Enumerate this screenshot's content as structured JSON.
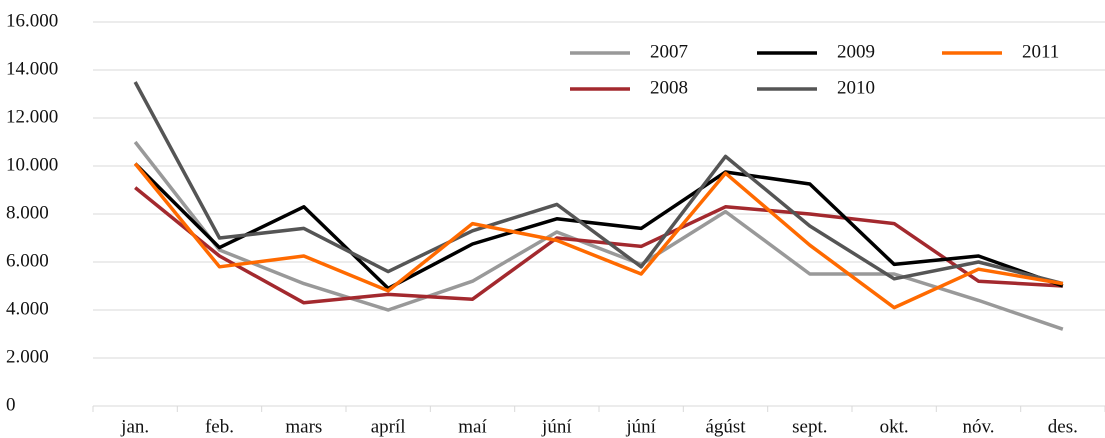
{
  "chart_data": {
    "type": "line",
    "categories": [
      "jan.",
      "feb.",
      "mars",
      "apríl",
      "maí",
      "júní",
      "júní",
      "ágúst",
      "sept.",
      "okt.",
      "nóv.",
      "des."
    ],
    "series": [
      {
        "name": "2007",
        "color": "#999999",
        "values": [
          11000,
          6500,
          5100,
          4000,
          5200,
          7250,
          5900,
          8100,
          5500,
          5500,
          4400,
          3200
        ]
      },
      {
        "name": "2008",
        "color": "#a3292e",
        "values": [
          9100,
          6250,
          4300,
          4650,
          4450,
          7000,
          6650,
          8300,
          8000,
          7600,
          5200,
          5000
        ]
      },
      {
        "name": "2009",
        "color": "#000000",
        "values": [
          10100,
          6600,
          8300,
          4900,
          6750,
          7800,
          7400,
          9750,
          9250,
          5900,
          6250,
          5000
        ]
      },
      {
        "name": "2010",
        "color": "#555555",
        "values": [
          13500,
          7000,
          7400,
          5600,
          7300,
          8400,
          5800,
          10400,
          7500,
          5300,
          6000,
          5100
        ]
      },
      {
        "name": "2011",
        "color": "#ff6a00",
        "values": [
          10100,
          5800,
          6250,
          4800,
          7600,
          6900,
          5500,
          9700,
          6700,
          4100,
          5700,
          5100
        ]
      }
    ],
    "ylim": [
      0,
      16000
    ],
    "yticks": [
      0,
      {
        "value": 2000,
        "label": "2.000"
      },
      {
        "value": 4000,
        "label": "4.000"
      },
      {
        "value": 6000,
        "label": "6.000"
      },
      {
        "value": 8000,
        "label": "8.000"
      },
      {
        "value": 10000,
        "label": "10.000"
      },
      {
        "value": 12000,
        "label": "12.000"
      },
      {
        "value": 14000,
        "label": "14.000"
      },
      {
        "value": 16000,
        "label": "16.000"
      }
    ],
    "grid": true,
    "legend": "top-right"
  }
}
